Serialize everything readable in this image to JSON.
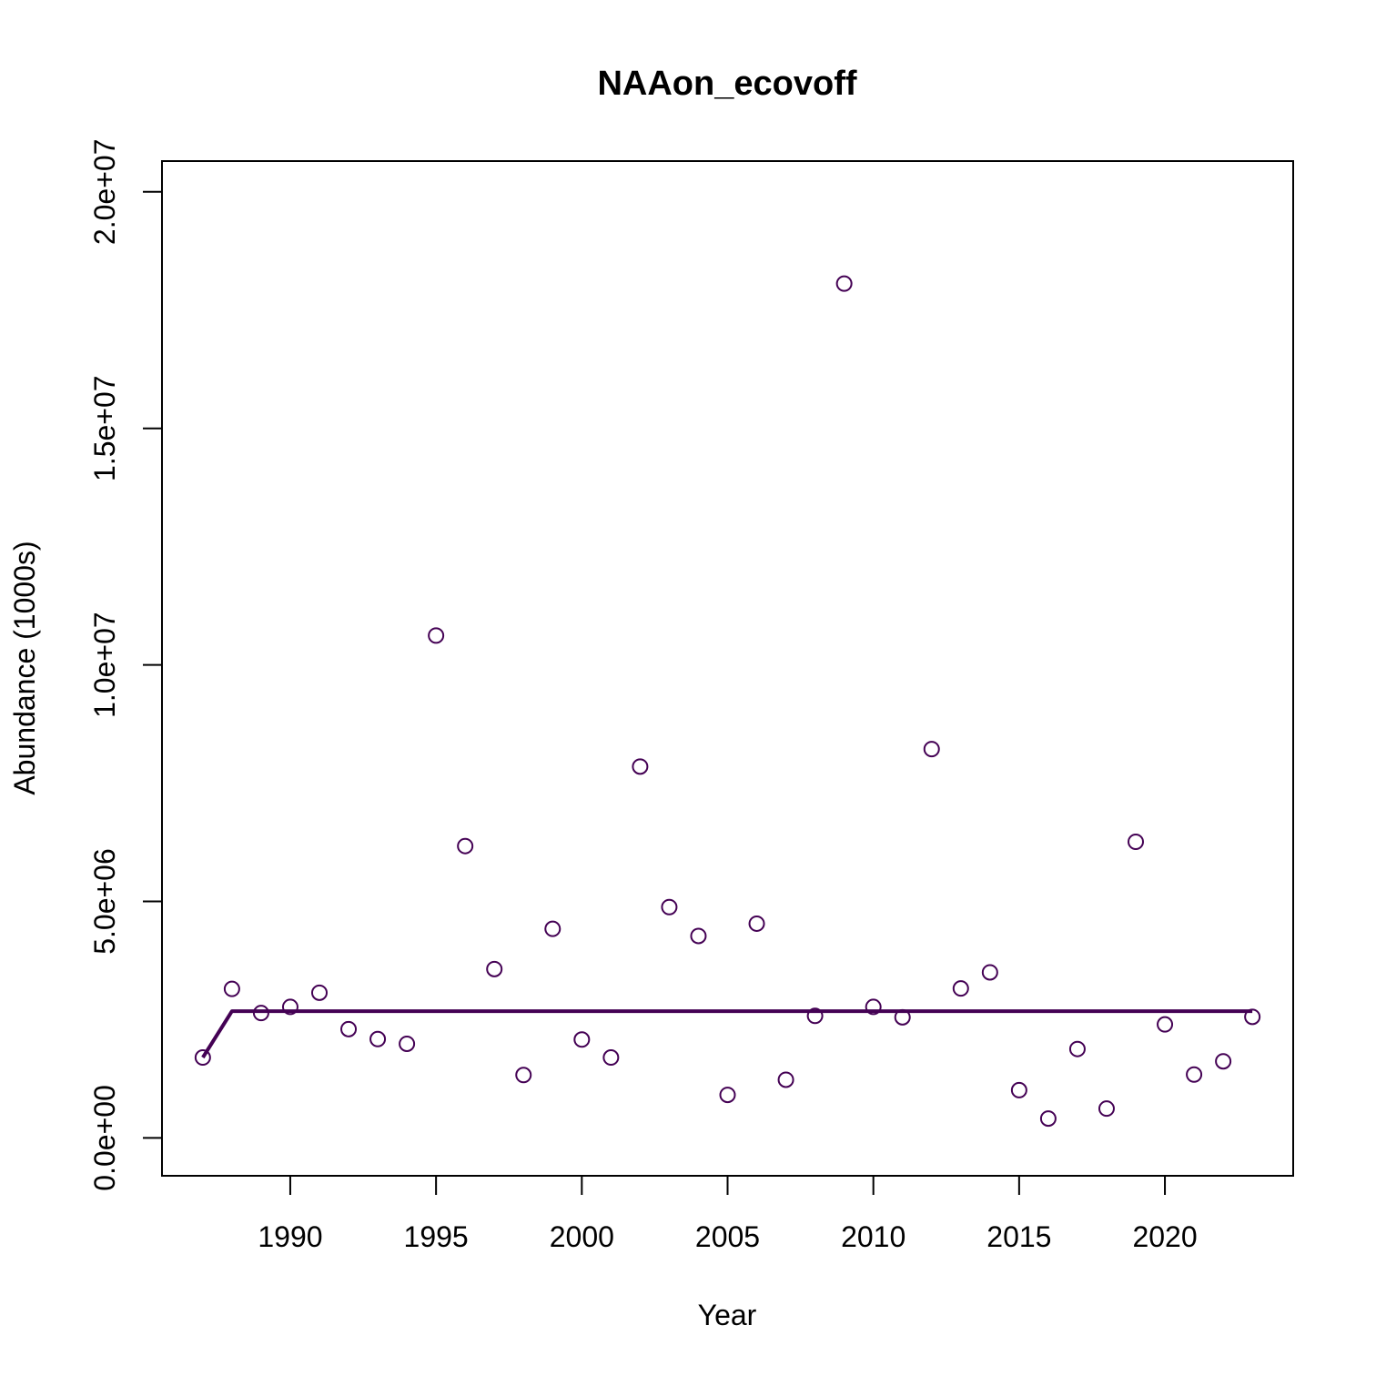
{
  "chart_data": {
    "type": "scatter",
    "title": "NAAon_ecovoff",
    "xlabel": "Year",
    "ylabel": "Abundance (1000s)",
    "xlim": [
      1985.6,
      2024.4
    ],
    "ylim": [
      -800000,
      20650000
    ],
    "x_ticks": [
      1990,
      1995,
      2000,
      2005,
      2010,
      2015,
      2020
    ],
    "x_tick_labels": [
      "1990",
      "1995",
      "2000",
      "2005",
      "2010",
      "2015",
      "2020"
    ],
    "y_ticks": [
      0,
      5000000,
      10000000,
      15000000,
      20000000
    ],
    "y_tick_labels": [
      "0.0e+00",
      "5.0e+06",
      "1.0e+07",
      "1.5e+07",
      "2.0e+07"
    ],
    "grid": false,
    "legend": "none",
    "series": [
      {
        "kind": "points",
        "marker": "open-circle",
        "color": "#440154",
        "x": [
          1987,
          1988,
          1989,
          1990,
          1991,
          1992,
          1993,
          1994,
          1995,
          1996,
          1997,
          1998,
          1999,
          2000,
          2001,
          2002,
          2003,
          2004,
          2005,
          2006,
          2007,
          2008,
          2009,
          2010,
          2011,
          2012,
          2013,
          2014,
          2015,
          2016,
          2017,
          2018,
          2019,
          2020,
          2021,
          2022,
          2023
        ],
        "values": [
          1700000,
          3150000,
          2640000,
          2770000,
          3070000,
          2300000,
          2090000,
          1990000,
          10620000,
          6170000,
          3570000,
          1330000,
          4420000,
          2080000,
          1700000,
          7850000,
          4880000,
          4270000,
          910000,
          4530000,
          1230000,
          2580000,
          18060000,
          2770000,
          2550000,
          8220000,
          3160000,
          3500000,
          1010000,
          410000,
          1880000,
          620000,
          6260000,
          2400000,
          1340000,
          1620000,
          2560000
        ]
      },
      {
        "kind": "line",
        "color": "#440154",
        "x": [
          1987,
          1988,
          1989,
          1990,
          1991,
          1992,
          1993,
          1994,
          1995,
          1996,
          1997,
          1998,
          1999,
          2000,
          2001,
          2002,
          2003,
          2004,
          2005,
          2006,
          2007,
          2008,
          2009,
          2010,
          2011,
          2012,
          2013,
          2014,
          2015,
          2016,
          2017,
          2018,
          2019,
          2020,
          2021,
          2022,
          2023
        ],
        "values": [
          1700000,
          2680000,
          2680000,
          2680000,
          2680000,
          2680000,
          2680000,
          2680000,
          2680000,
          2680000,
          2680000,
          2680000,
          2680000,
          2680000,
          2680000,
          2680000,
          2680000,
          2680000,
          2680000,
          2680000,
          2680000,
          2680000,
          2680000,
          2680000,
          2680000,
          2680000,
          2680000,
          2680000,
          2680000,
          2680000,
          2680000,
          2680000,
          2680000,
          2680000,
          2680000,
          2680000,
          2680000
        ]
      }
    ]
  }
}
